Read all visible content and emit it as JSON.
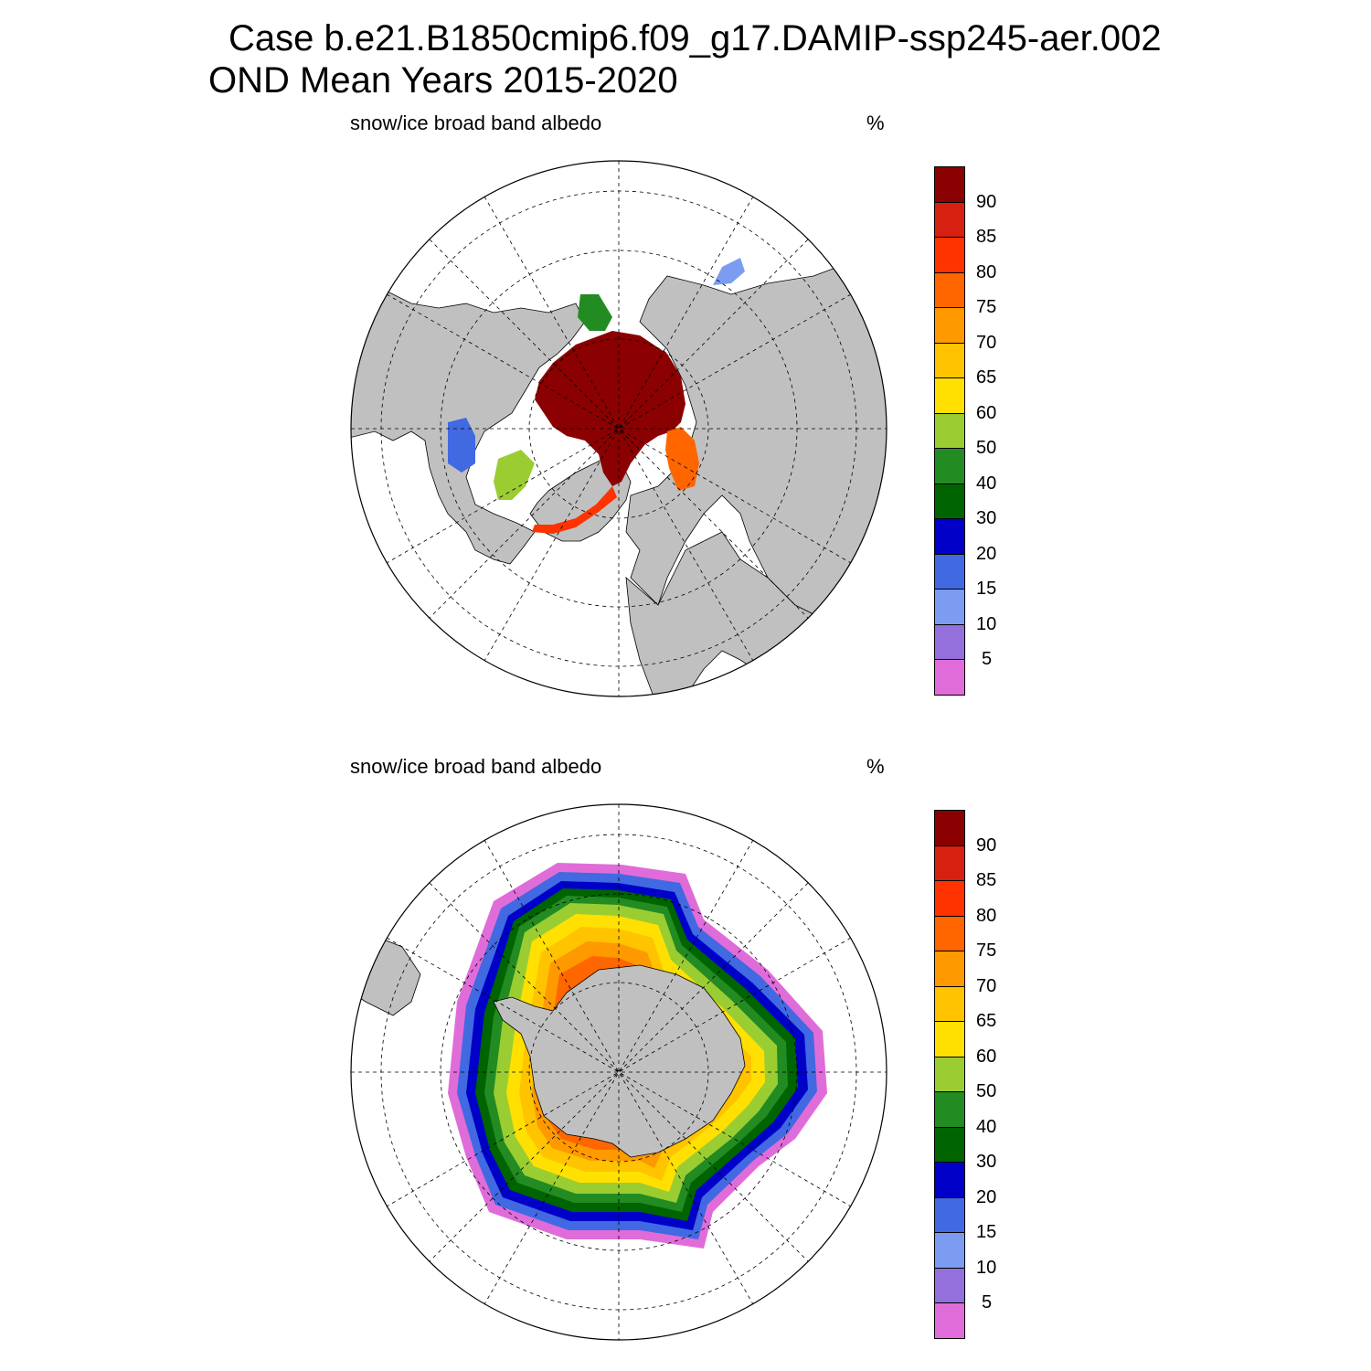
{
  "header": {
    "line1": "Case b.e21.B1850cmip6.f09_g17.DAMIP-ssp245-aer.002",
    "line2": "OND Mean   Years 2015-2020"
  },
  "panels": [
    {
      "label": "snow/ice broad band albedo",
      "units": "%",
      "hemisphere": "north"
    },
    {
      "label": "snow/ice broad band albedo",
      "units": "%",
      "hemisphere": "south"
    }
  ],
  "colorbar": {
    "levels": [
      "5",
      "10",
      "15",
      "20",
      "30",
      "40",
      "50",
      "60",
      "65",
      "70",
      "75",
      "80",
      "85",
      "90"
    ],
    "colors": [
      "#e06cd9",
      "#9370db",
      "#7b9cf0",
      "#4169e1",
      "#0000c8",
      "#006400",
      "#228b22",
      "#9acd32",
      "#ffe000",
      "#ffc300",
      "#ff9900",
      "#ff6600",
      "#ff3300",
      "#d62010",
      "#8b0000"
    ]
  },
  "map_style": {
    "land_color": "#c0c0c0",
    "ocean_color": "#ffffff"
  }
}
